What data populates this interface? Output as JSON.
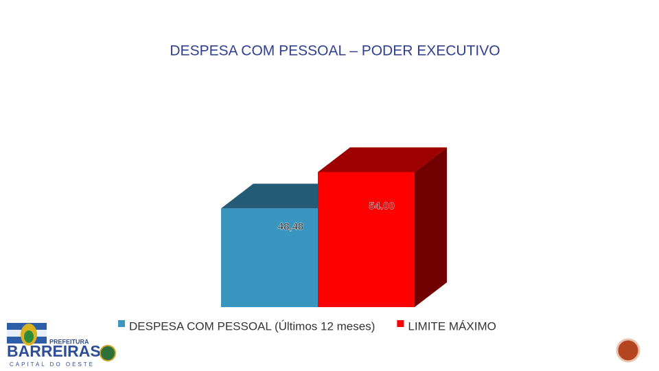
{
  "chart_data": {
    "type": "bar3d",
    "title": "DESPESA COM PESSOAL – PODER EXECUTIVO",
    "categories": [
      null
    ],
    "series": [
      {
        "name": "DESPESA COM PESSOAL (Últimos 12 meses)",
        "color": "#3a95c0",
        "values": [
          48.48
        ],
        "value_labels": [
          "48,48"
        ]
      },
      {
        "name": "LIMITE MÁXIMO",
        "color": "#ff0000",
        "values": [
          54.0
        ],
        "value_labels": [
          "54.00"
        ]
      }
    ],
    "ylim": [
      33.5,
      60
    ],
    "legend": "bottom"
  },
  "logo": {
    "top": "PREFEITURA",
    "name": "BARREIRAS",
    "motto": "CAPITAL DO OESTE"
  }
}
